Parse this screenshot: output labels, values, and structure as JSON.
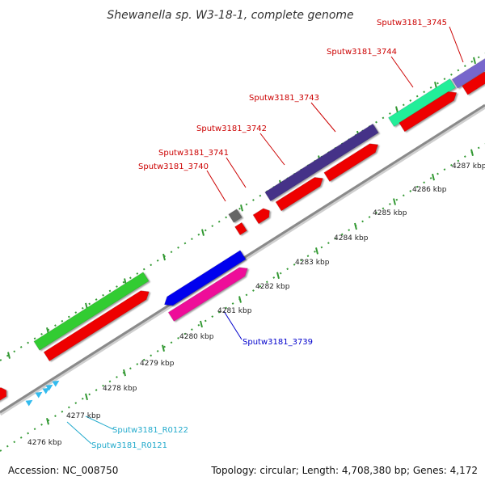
{
  "title": "Shewanella sp. W3-18-1, complete genome",
  "footer": {
    "accession": "Accession: NC_008750",
    "summary": "Topology: circular; Length: 4,708,380 bp; Genes: 4,172"
  },
  "backbone_color": "#8a8a8a",
  "ticks": [
    {
      "label": "4276 kbp"
    },
    {
      "label": "4277 kbp"
    },
    {
      "label": "4278 kbp"
    },
    {
      "label": "4279 kbp"
    },
    {
      "label": "4280 kbp"
    },
    {
      "label": "4281 kbp"
    },
    {
      "label": "4282 kbp"
    },
    {
      "label": "4283 kbp"
    },
    {
      "label": "4284 kbp"
    },
    {
      "label": "4285 kbp"
    },
    {
      "label": "4286 kbp"
    },
    {
      "label": "4287 kbp"
    }
  ],
  "gene_labels": [
    {
      "text": "Sputw3181_3745",
      "color": "#cc0000"
    },
    {
      "text": "Sputw3181_3744",
      "color": "#cc0000"
    },
    {
      "text": "Sputw3181_3743",
      "color": "#cc0000"
    },
    {
      "text": "Sputw3181_3742",
      "color": "#cc0000"
    },
    {
      "text": "Sputw3181_3741",
      "color": "#cc0000"
    },
    {
      "text": "Sputw3181_3740",
      "color": "#cc0000"
    },
    {
      "text": "Sputw3181_3739",
      "color": "#0000cc"
    },
    {
      "text": "Sputw3181_R0122",
      "color": "#22aacc"
    },
    {
      "text": "Sputw3181_R0121",
      "color": "#22aacc"
    }
  ],
  "feature_colors": {
    "cds": "#ee0000",
    "green": "#33cc33",
    "blue": "#0000ee",
    "pink": "#ee1199",
    "navy": "#443388",
    "teal": "#22ee99",
    "violet": "#7766cc",
    "gray": "#666666",
    "trna": "#33bbee"
  }
}
